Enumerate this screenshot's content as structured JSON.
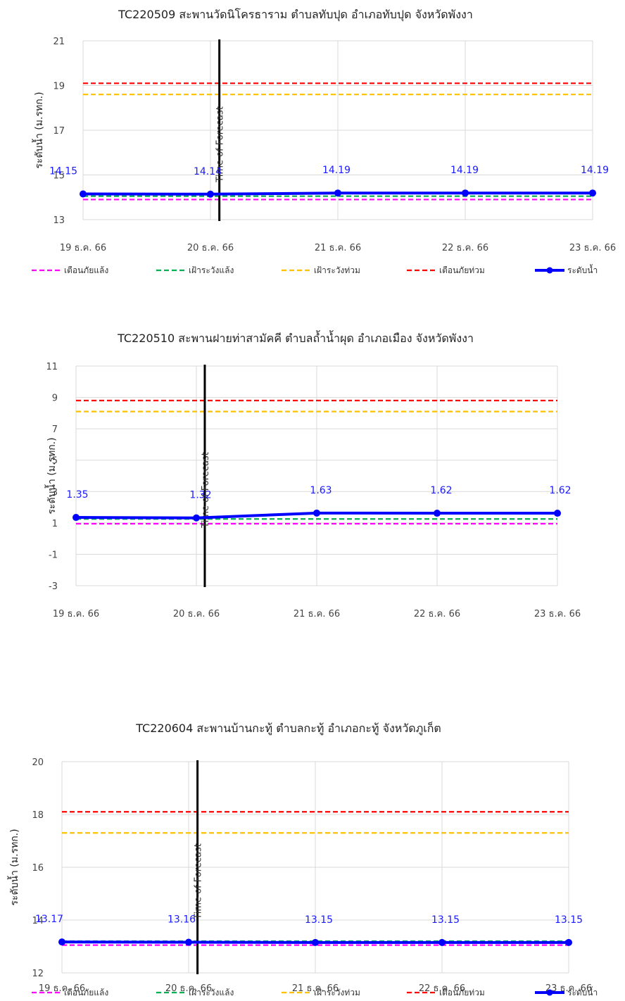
{
  "chart_data": [
    {
      "type": "line",
      "title": "TC220509 สะพานวัดนิโครธาราม ตำบลทับปุด อำเภอทับปุด  จังหวัดพังงา",
      "ylabel": "ระดับน้ำ (ม.รทก.)",
      "xlabel": "",
      "ylim": [
        13,
        21
      ],
      "yticks": [
        13,
        15,
        17,
        19,
        21
      ],
      "categories": [
        "19 ธ.ค. 66",
        "20 ธ.ค. 66",
        "21 ธ.ค. 66",
        "22 ธ.ค. 66",
        "23 ธ.ค. 66"
      ],
      "series": [
        {
          "name": "เตือนภัยแล้ง",
          "color": "#ff00ff",
          "dashed": true,
          "values": [
            13.9,
            13.9,
            13.9,
            13.9,
            13.9
          ]
        },
        {
          "name": "เฝ้าระวังแล้ง",
          "color": "#00b050",
          "dashed": true,
          "values": [
            14.05,
            14.05,
            14.05,
            14.05,
            14.05
          ]
        },
        {
          "name": "เฝ้าระวังท่วม",
          "color": "#ffc000",
          "dashed": true,
          "values": [
            18.6,
            18.6,
            18.6,
            18.6,
            18.6
          ]
        },
        {
          "name": "เตือนภัยท่วม",
          "color": "#ff0000",
          "dashed": true,
          "values": [
            19.1,
            19.1,
            19.1,
            19.1,
            19.1
          ]
        },
        {
          "name": "ระดับน้ำ",
          "color": "#0000ff",
          "dashed": false,
          "values": [
            14.15,
            14.14,
            14.19,
            14.19,
            14.19
          ]
        }
      ],
      "data_labels": [
        "14.15",
        "14.14",
        "14.19",
        "14.19",
        "14.19"
      ],
      "annotation": "Time of Forecast",
      "forecast_x": 1.07,
      "grid": true,
      "legend": "bottom"
    },
    {
      "type": "line",
      "title": "TC220510 สะพานฝายท่าสามัคคี ตำบลถ้ำน้ำผุด อำเภอเมือง  จังหวัดพังงา",
      "ylabel": "ระดับน้ำ (ม.รทก.)",
      "xlabel": "",
      "ylim": [
        -3,
        11
      ],
      "yticks": [
        -3,
        -1,
        1,
        3,
        5,
        7,
        9,
        11
      ],
      "categories": [
        "19 ธ.ค. 66",
        "20 ธ.ค. 66",
        "21 ธ.ค. 66",
        "22 ธ.ค. 66",
        "23 ธ.ค. 66"
      ],
      "series": [
        {
          "name": "เตือนภัยแล้ง",
          "color": "#ff00ff",
          "dashed": true,
          "values": [
            0.95,
            0.95,
            0.95,
            0.95,
            0.95
          ]
        },
        {
          "name": "เฝ้าระวังแล้ง",
          "color": "#00b050",
          "dashed": true,
          "values": [
            1.25,
            1.25,
            1.25,
            1.25,
            1.25
          ]
        },
        {
          "name": "เฝ้าระวังท่วม",
          "color": "#ffc000",
          "dashed": true,
          "values": [
            8.1,
            8.1,
            8.1,
            8.1,
            8.1
          ]
        },
        {
          "name": "เตือนภัยท่วม",
          "color": "#ff0000",
          "dashed": true,
          "values": [
            8.8,
            8.8,
            8.8,
            8.8,
            8.8
          ]
        },
        {
          "name": "ระดับน้ำ",
          "color": "#0000ff",
          "dashed": false,
          "values": [
            1.35,
            1.32,
            1.63,
            1.62,
            1.62
          ]
        }
      ],
      "data_labels": [
        "1.35",
        "1.32",
        "1.63",
        "1.62",
        "1.62"
      ],
      "annotation": "Time of Forecast",
      "forecast_x": 1.07,
      "grid": true,
      "legend": "bottom"
    },
    {
      "type": "line",
      "title": "TC220604 สะพานบ้านกะทู้ ตำบลกะทู้ อำเภอกะทู้  จังหวัดภูเก็ต",
      "ylabel": "ระดับน้ำ (ม.รทก.)",
      "xlabel": "",
      "ylim": [
        12,
        20
      ],
      "yticks": [
        12,
        14,
        16,
        18,
        20
      ],
      "categories": [
        "19 ธ.ค. 66",
        "20 ธ.ค. 66",
        "21 ธ.ค. 66",
        "22 ธ.ค. 66",
        "23 ธ.ค. 66"
      ],
      "series": [
        {
          "name": "เตือนภัยแล้ง",
          "color": "#ff00ff",
          "dashed": true,
          "values": [
            13.05,
            13.05,
            13.05,
            13.05,
            13.05
          ]
        },
        {
          "name": "เฝ้าระวังแล้ง",
          "color": "#00b050",
          "dashed": true,
          "values": [
            13.2,
            13.2,
            13.2,
            13.2,
            13.2
          ]
        },
        {
          "name": "เฝ้าระวังท่วม",
          "color": "#ffc000",
          "dashed": true,
          "values": [
            17.3,
            17.3,
            17.3,
            17.3,
            17.3
          ]
        },
        {
          "name": "เตือนภัยท่วม",
          "color": "#ff0000",
          "dashed": true,
          "values": [
            18.1,
            18.1,
            18.1,
            18.1,
            18.1
          ]
        },
        {
          "name": "ระดับน้ำ",
          "color": "#0000ff",
          "dashed": false,
          "values": [
            13.17,
            13.16,
            13.15,
            13.15,
            13.15
          ]
        }
      ],
      "data_labels": [
        "13.17",
        "13.16",
        "13.15",
        "13.15",
        "13.15"
      ],
      "annotation": "Time of Forecast",
      "forecast_x": 1.07,
      "grid": true,
      "legend": "bottom"
    }
  ]
}
